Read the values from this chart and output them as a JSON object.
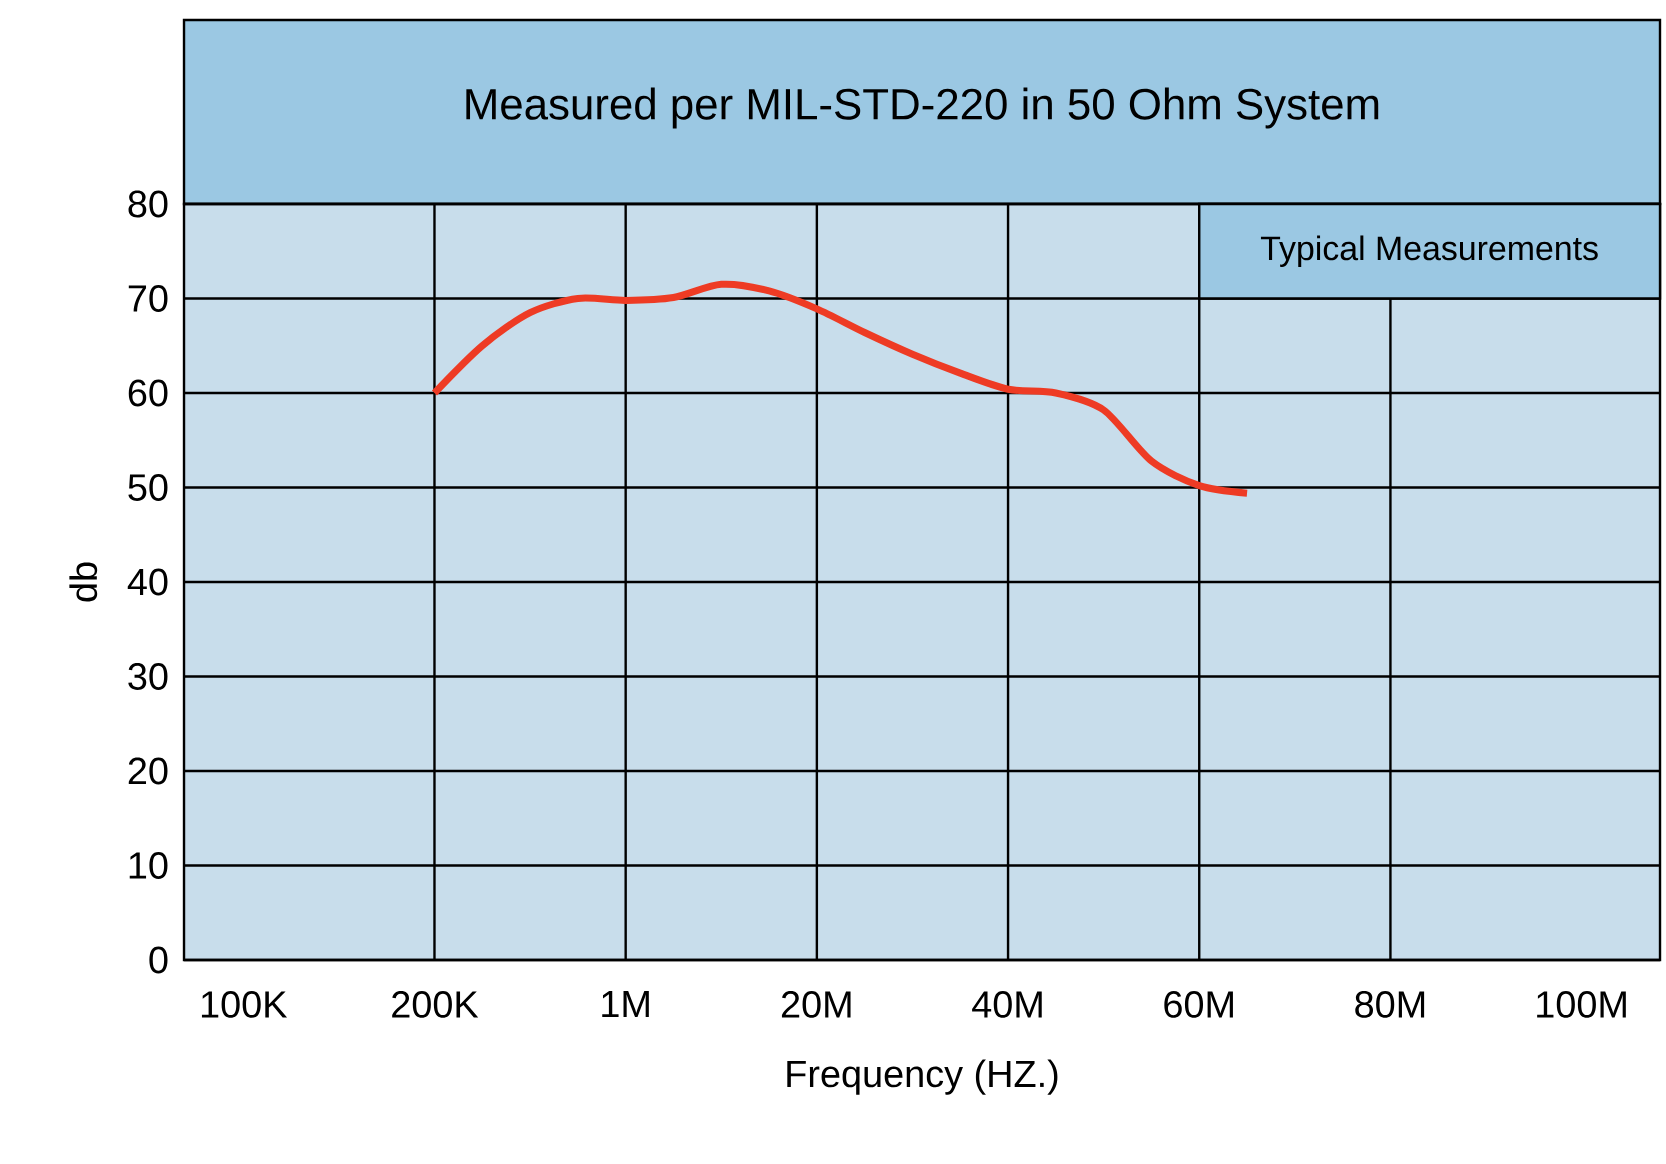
{
  "chart_data": {
    "type": "line",
    "title": "Measured per MIL-STD-220 in 50 Ohm System",
    "xlabel": "Frequency (HZ.)",
    "ylabel": "db",
    "annotations": [
      "Typical Measurements"
    ],
    "categories": [
      "100K",
      null,
      null,
      null,
      "200K",
      null,
      null,
      null,
      "1M",
      null,
      null,
      null,
      "20M",
      null,
      null,
      null,
      "40M",
      null,
      null,
      null,
      "60M",
      null,
      null,
      null,
      "80M",
      null,
      null,
      null,
      "100M"
    ],
    "series": [
      {
        "color": "#ee3b24",
        "values": [
          null,
          null,
          null,
          null,
          60,
          65,
          68.5,
          70,
          69.8,
          70.1,
          71.5,
          70.8,
          68.9,
          66.4,
          64.1,
          62.1,
          60.4,
          60,
          58.2,
          52.8,
          50.2,
          49.4,
          null,
          null,
          null,
          null,
          null,
          null,
          null
        ]
      }
    ],
    "ylim": [
      0,
      80
    ],
    "yticks": [
      0,
      10,
      20,
      30,
      40,
      50,
      60,
      70,
      80
    ],
    "grid": true,
    "legend": false,
    "marker": "none",
    "line_style": "solid"
  }
}
